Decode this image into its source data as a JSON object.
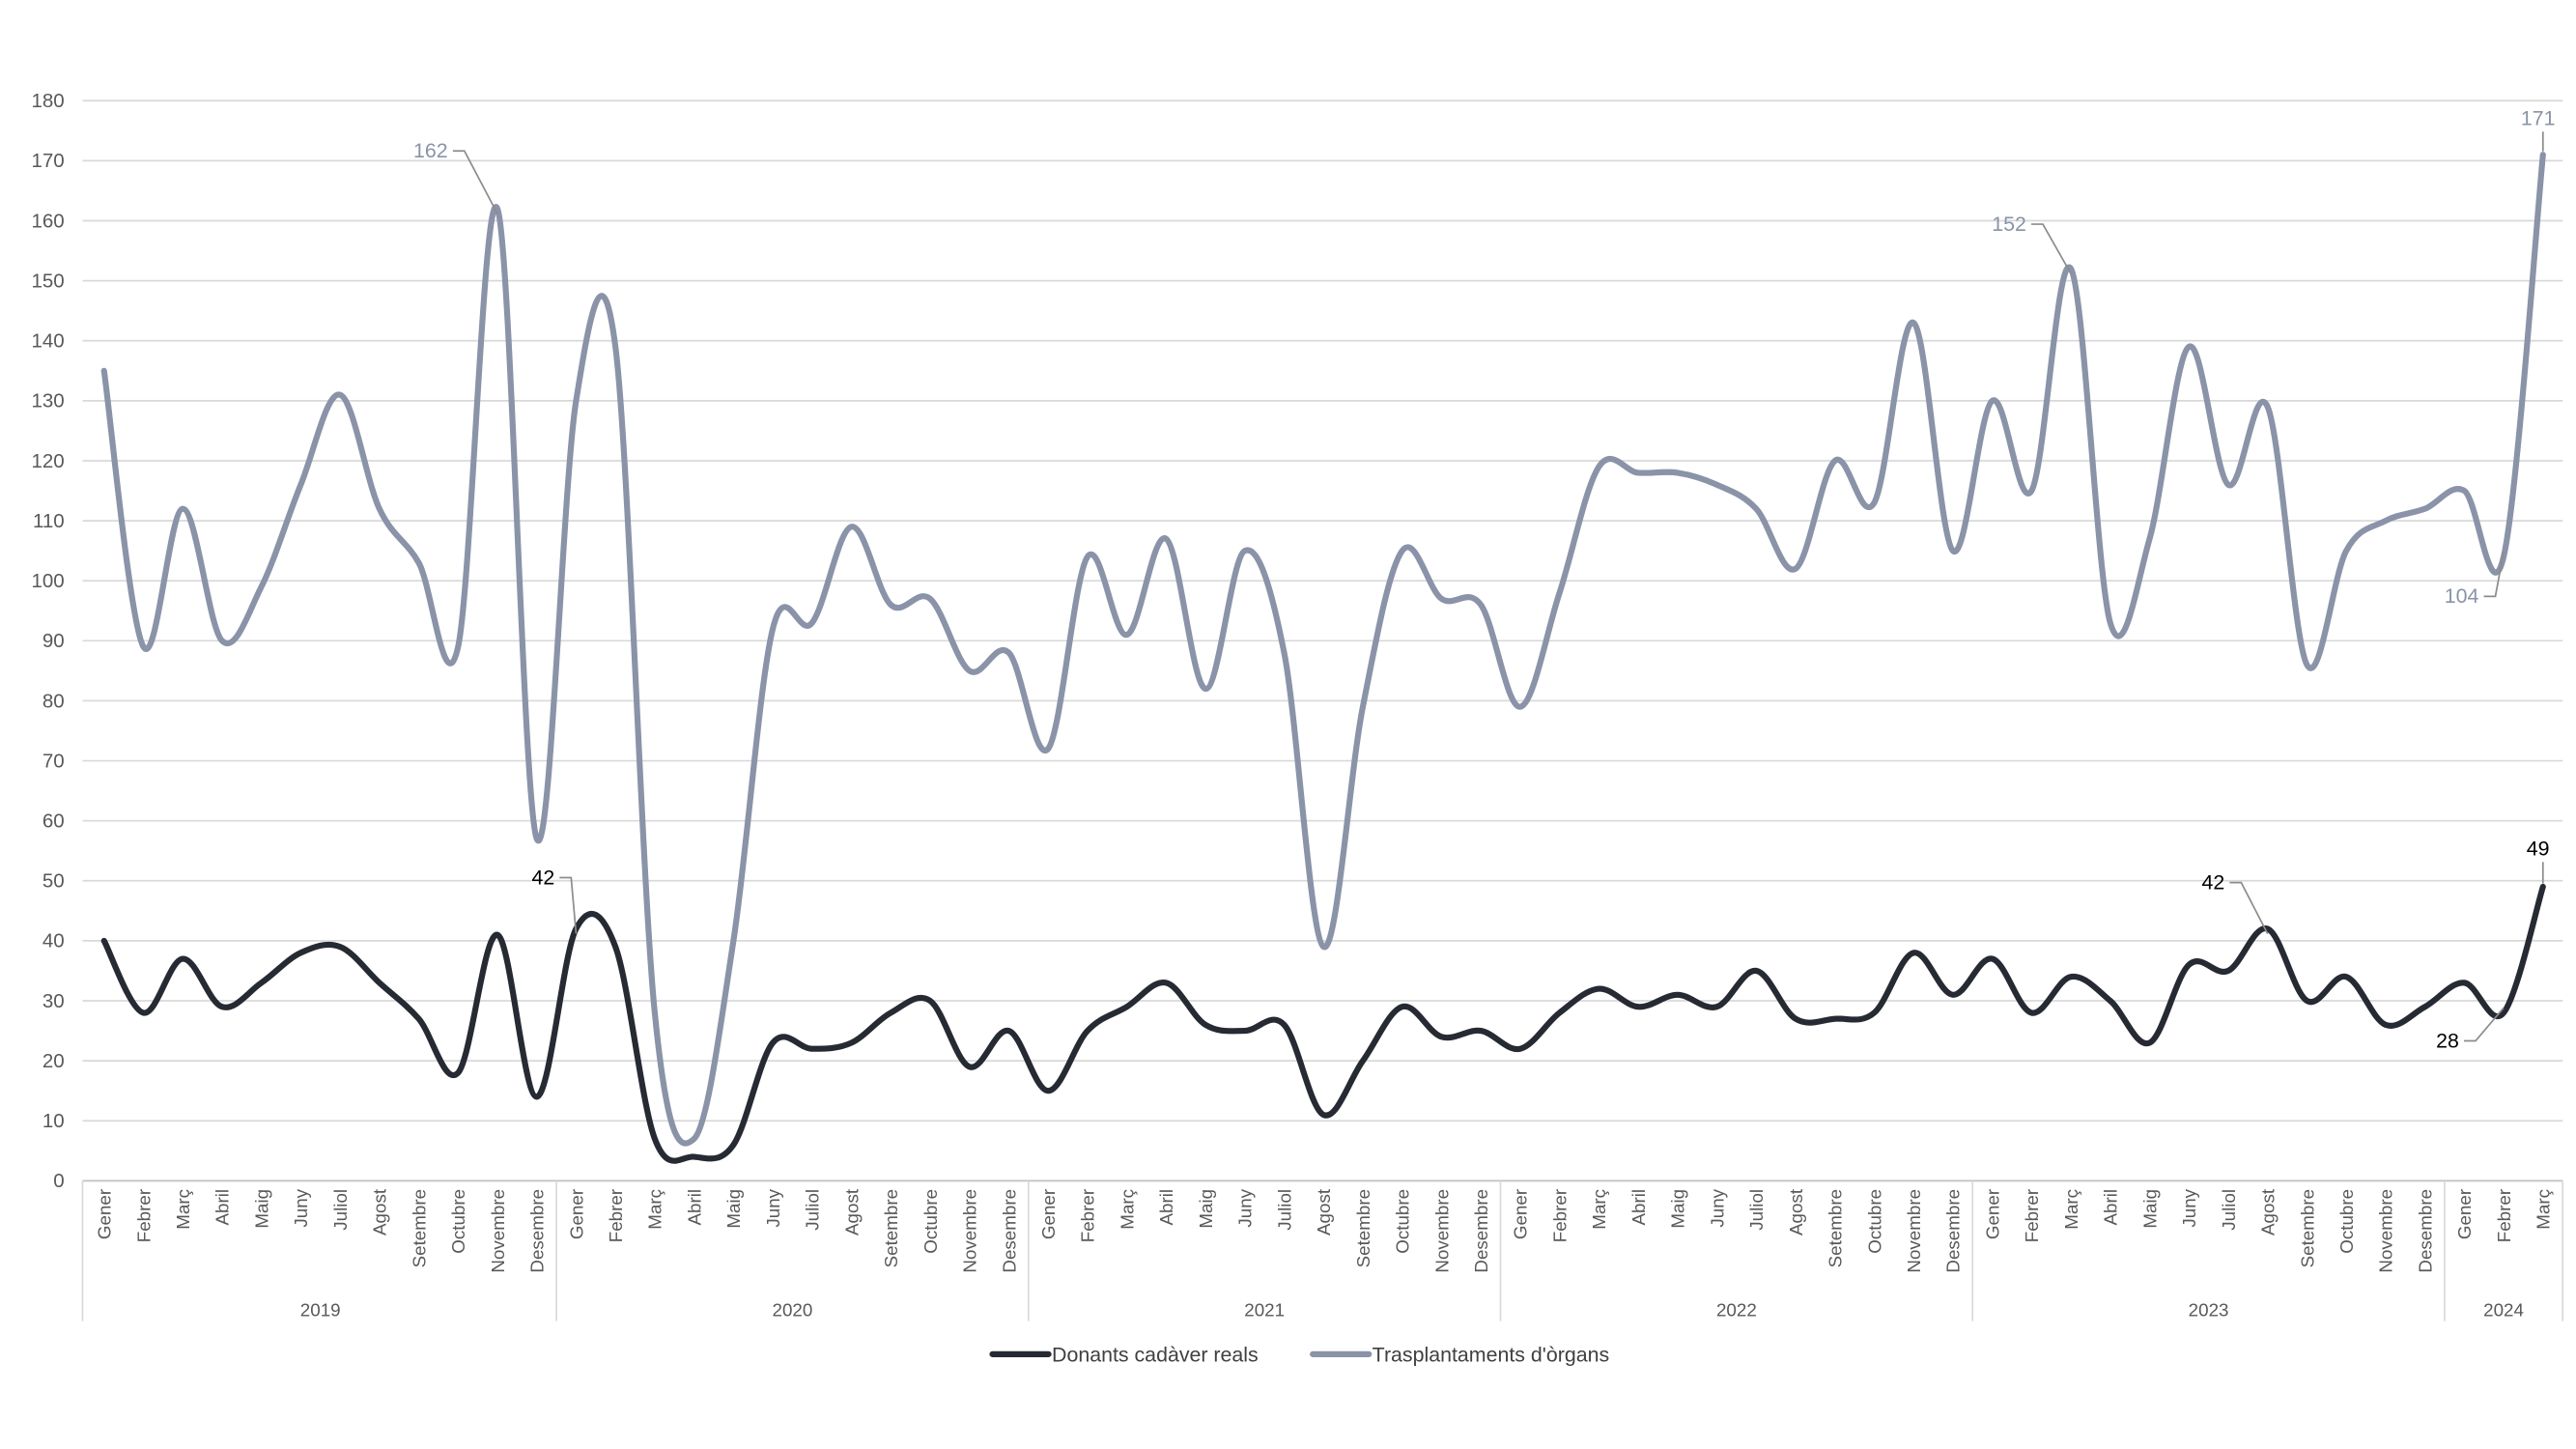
{
  "chart_data": {
    "type": "line",
    "title": "",
    "xlabel": "",
    "ylabel": "",
    "ylim": [
      0,
      180
    ],
    "yticks": [
      0,
      10,
      20,
      30,
      40,
      50,
      60,
      70,
      80,
      90,
      100,
      110,
      120,
      130,
      140,
      150,
      160,
      170,
      180
    ],
    "grid": true,
    "legend_position": "bottom",
    "months": [
      "Gener",
      "Febrer",
      "Març",
      "Abril",
      "Maig",
      "Juny",
      "Juliol",
      "Agost",
      "Setembre",
      "Octubre",
      "Novembre",
      "Desembre"
    ],
    "years": [
      {
        "label": "2019",
        "months": 12
      },
      {
        "label": "2020",
        "months": 12
      },
      {
        "label": "2021",
        "months": 12
      },
      {
        "label": "2022",
        "months": 12
      },
      {
        "label": "2023",
        "months": 12
      },
      {
        "label": "2024",
        "months": 3
      }
    ],
    "series": [
      {
        "name": "Donants cadàver reals",
        "color": "#262a33",
        "values": [
          40,
          28,
          37,
          29,
          33,
          38,
          39,
          33,
          27,
          18,
          41,
          14,
          42,
          39,
          7,
          4,
          6,
          23,
          22,
          23,
          28,
          30,
          19,
          25,
          15,
          25,
          29,
          33,
          26,
          25,
          26,
          11,
          20,
          29,
          24,
          25,
          22,
          28,
          32,
          29,
          31,
          29,
          35,
          27,
          27,
          28,
          38,
          31,
          37,
          28,
          34,
          30,
          23,
          36,
          35,
          42,
          30,
          34,
          26,
          29,
          33,
          28,
          49
        ]
      },
      {
        "name": "Trasplantaments d'òrgans",
        "color": "#8a93a8",
        "values": [
          135,
          89,
          112,
          90,
          99,
          116,
          131,
          112,
          103,
          89,
          162,
          57,
          130,
          139,
          28,
          7,
          40,
          92,
          93,
          109,
          96,
          97,
          85,
          88,
          72,
          104,
          91,
          107,
          82,
          105,
          88,
          39,
          79,
          105,
          97,
          96,
          79,
          98,
          119,
          118,
          118,
          116,
          112,
          102,
          120,
          113,
          143,
          105,
          130,
          115,
          152,
          93,
          107,
          139,
          116,
          129,
          86,
          105,
          110,
          112,
          115,
          104,
          171
        ]
      }
    ],
    "annotations": [
      {
        "series": 1,
        "index": 10,
        "text": "162"
      },
      {
        "series": 0,
        "index": 12,
        "text": "42"
      },
      {
        "series": 1,
        "index": 50,
        "text": "152"
      },
      {
        "series": 1,
        "index": 62,
        "text": "171"
      },
      {
        "series": 1,
        "index": 61,
        "text": "104"
      },
      {
        "series": 0,
        "index": 55,
        "text": "42"
      },
      {
        "series": 0,
        "index": 62,
        "text": "49"
      },
      {
        "series": 0,
        "index": 61,
        "text": "28"
      }
    ]
  }
}
